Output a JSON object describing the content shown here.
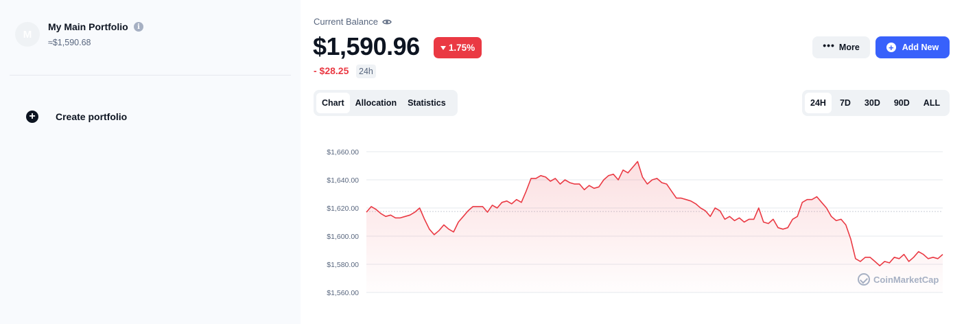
{
  "sidebar": {
    "portfolio": {
      "avatar_letter": "M",
      "name": "My Main Portfolio",
      "info_icon": "i",
      "balance": "≈$1,590.68"
    },
    "create_label": "Create portfolio",
    "create_icon": "+"
  },
  "header": {
    "current_balance_label": "Current Balance",
    "balance": "$1,590.96",
    "change_percent": "1.75%",
    "change_value": "- $28.25",
    "change_period": "24h",
    "more_label": "More",
    "add_new_label": "Add New"
  },
  "tabs": [
    {
      "label": "Chart",
      "active": true
    },
    {
      "label": "Allocation",
      "active": false
    },
    {
      "label": "Statistics",
      "active": false
    }
  ],
  "ranges": [
    {
      "label": "24H",
      "active": true
    },
    {
      "label": "7D",
      "active": false
    },
    {
      "label": "30D",
      "active": false
    },
    {
      "label": "90D",
      "active": false
    },
    {
      "label": "ALL",
      "active": false
    }
  ],
  "watermark": "CoinMarketCap",
  "colors": {
    "accent": "#3861fb",
    "negative": "#ea3943",
    "text": "#0d1421",
    "muted": "#58667e"
  },
  "icons": {
    "eye": "eye-icon",
    "info": "info-icon",
    "more": "more-dots-icon",
    "add": "plus-circle-icon",
    "create": "plus-circle-icon",
    "caret": "caret-down-icon"
  },
  "chart_data": {
    "type": "area",
    "ylim": [
      1560,
      1660
    ],
    "yticks": [
      "$1,660.00",
      "$1,640.00",
      "$1,620.00",
      "$1,600.00",
      "$1,580.00",
      "$1,560.00"
    ],
    "ytick_values": [
      1660,
      1640,
      1620,
      1600,
      1580,
      1560
    ],
    "reference_value": 1617.5,
    "grid": true,
    "series": [
      {
        "values": [
          1617,
          1621,
          1619,
          1616,
          1614,
          1615,
          1613,
          1613,
          1614,
          1615,
          1617,
          1620,
          1612,
          1605,
          1601,
          1604,
          1608,
          1605,
          1603,
          1610,
          1614,
          1618,
          1621,
          1621,
          1621,
          1617,
          1622,
          1620,
          1624,
          1625,
          1623,
          1626,
          1624,
          1632,
          1641,
          1641,
          1643,
          1642,
          1639,
          1641,
          1637,
          1640,
          1638,
          1637,
          1637,
          1633,
          1636,
          1634,
          1635,
          1640,
          1643,
          1644,
          1640,
          1647,
          1645,
          1649,
          1653,
          1642,
          1637,
          1640,
          1641,
          1638,
          1637,
          1632,
          1627,
          1627,
          1626,
          1625,
          1623,
          1620,
          1618,
          1614,
          1620,
          1618,
          1612,
          1614,
          1611,
          1613,
          1610,
          1612,
          1612,
          1620,
          1610,
          1609,
          1612,
          1606,
          1605,
          1606,
          1612,
          1614,
          1624,
          1626,
          1626,
          1628,
          1624,
          1620,
          1614,
          1611,
          1612,
          1608,
          1598,
          1584,
          1582,
          1585,
          1585,
          1582,
          1579,
          1582,
          1581,
          1585,
          1584,
          1587,
          1582,
          1585,
          1589,
          1587,
          1584,
          1585,
          1584,
          1587
        ]
      }
    ]
  }
}
